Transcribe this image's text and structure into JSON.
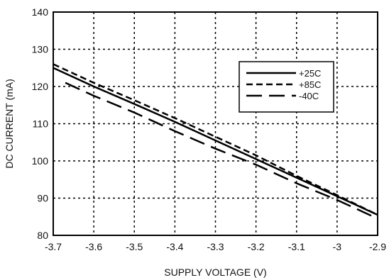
{
  "chart_data": {
    "type": "line",
    "title": "",
    "xlabel": "SUPPLY VOLTAGE (V)",
    "ylabel": "DC CURRENT (mA)",
    "xlim": [
      -3.7,
      -2.9
    ],
    "ylim": [
      80,
      140
    ],
    "xticks": [
      -3.7,
      -3.6,
      -3.5,
      -3.4,
      -3.3,
      -3.2,
      -3.1,
      -3.0,
      -2.9
    ],
    "xtick_labels": [
      "-3.7",
      "-3.6",
      "-3.5",
      "-3.4",
      "-3.3",
      "-3.2",
      "-3.1",
      "-3",
      "-2.9"
    ],
    "yticks": [
      80,
      90,
      100,
      110,
      120,
      130,
      140
    ],
    "ytick_labels": [
      "80",
      "90",
      "100",
      "110",
      "120",
      "130",
      "140"
    ],
    "grid": true,
    "legend_position": "top-right",
    "series": [
      {
        "name": "+25C",
        "style": "solid",
        "x": [
          -3.7,
          -3.6,
          -3.5,
          -3.4,
          -3.3,
          -3.2,
          -3.1,
          -3.0,
          -2.9
        ],
        "y": [
          125.0,
          120.0,
          115.3,
          110.5,
          105.5,
          100.5,
          95.5,
          90.5,
          85.5
        ]
      },
      {
        "name": "+85C",
        "style": "dash",
        "x": [
          -3.7,
          -3.6,
          -3.5,
          -3.4,
          -3.3,
          -3.2,
          -3.1,
          -3.0,
          -2.9
        ],
        "y": [
          126.0,
          121.0,
          116.3,
          111.5,
          106.5,
          101.5,
          96.0,
          90.8,
          85.5
        ]
      },
      {
        "name": "-40C",
        "style": "longdash",
        "x": [
          -3.67,
          -3.6,
          -3.5,
          -3.4,
          -3.3,
          -3.2,
          -3.1,
          -3.0,
          -2.9
        ],
        "y": [
          121.0,
          117.5,
          113.0,
          108.0,
          103.3,
          99.0,
          94.0,
          89.5,
          84.5
        ]
      }
    ]
  }
}
